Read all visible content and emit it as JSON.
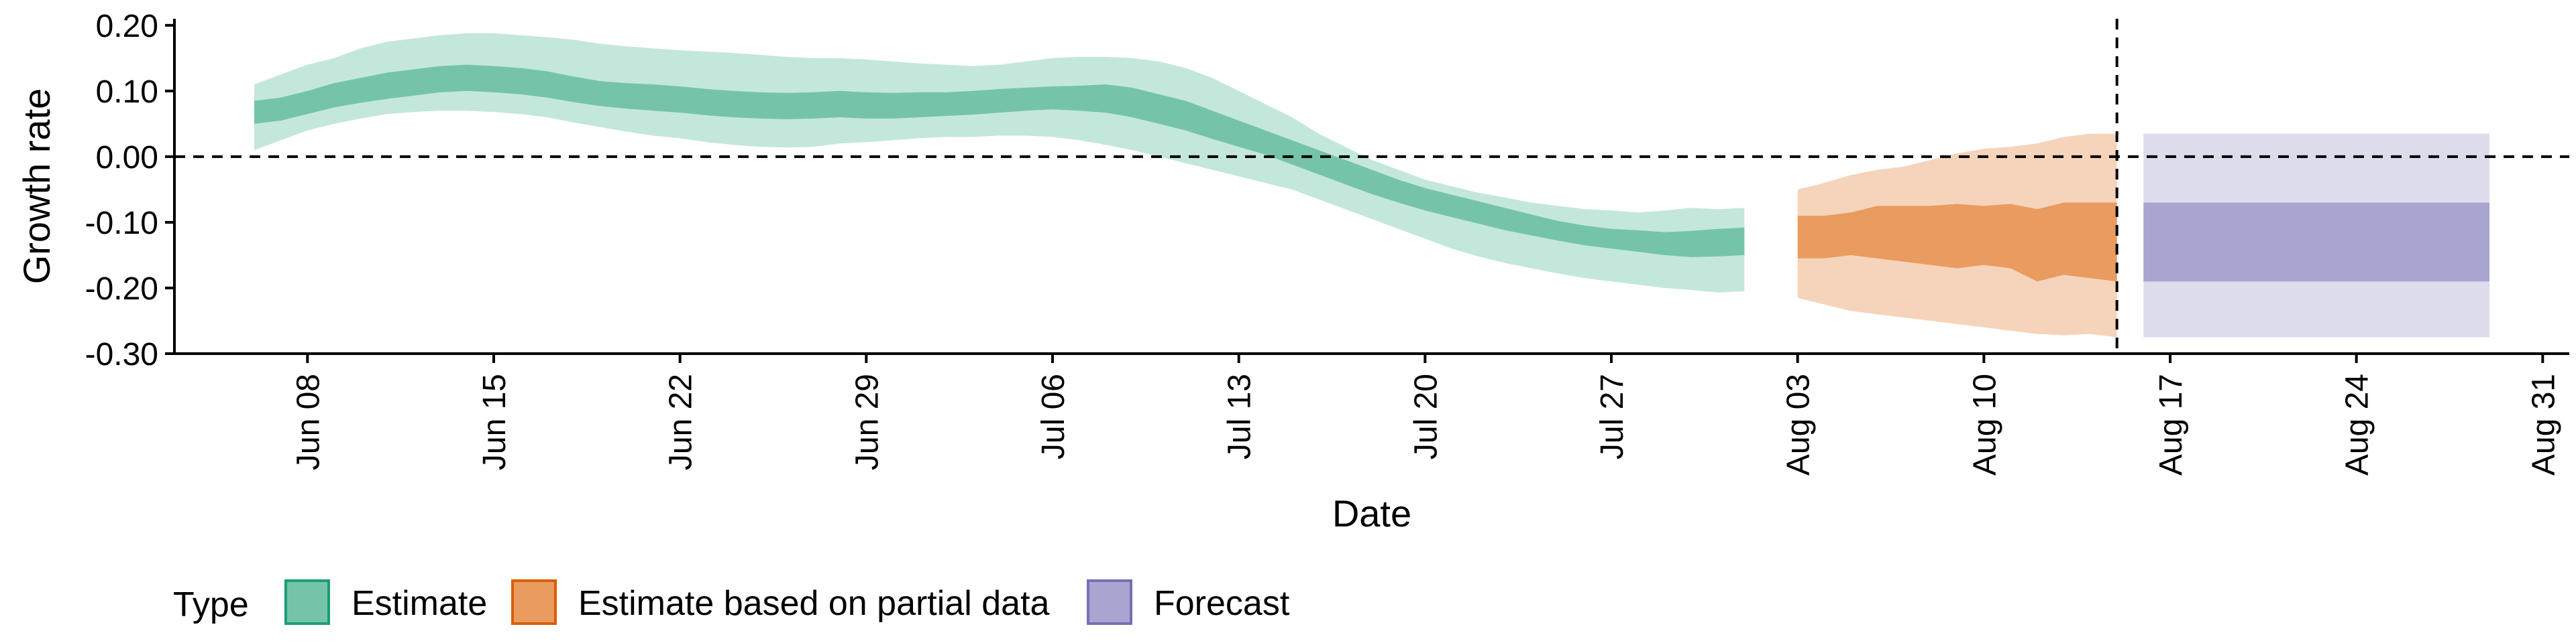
{
  "chart_data": {
    "type": "area",
    "xlabel": "Date",
    "ylabel": "Growth rate",
    "ylim": [
      -0.3,
      0.21
    ],
    "xlim": [
      "2020-06-03",
      "2020-09-01"
    ],
    "grid": false,
    "y_ticks": [
      {
        "value": 0.2,
        "label": "0.20"
      },
      {
        "value": 0.1,
        "label": "0.10"
      },
      {
        "value": 0.0,
        "label": "0.00"
      },
      {
        "value": -0.1,
        "label": "-0.10"
      },
      {
        "value": -0.2,
        "label": "-0.20"
      },
      {
        "value": -0.3,
        "label": "-0.30"
      }
    ],
    "x_ticks": [
      {
        "date": "2020-06-08",
        "label": "Jun 08"
      },
      {
        "date": "2020-06-15",
        "label": "Jun 15"
      },
      {
        "date": "2020-06-22",
        "label": "Jun 22"
      },
      {
        "date": "2020-06-29",
        "label": "Jun 29"
      },
      {
        "date": "2020-07-06",
        "label": "Jul 06"
      },
      {
        "date": "2020-07-13",
        "label": "Jul 13"
      },
      {
        "date": "2020-07-20",
        "label": "Jul 20"
      },
      {
        "date": "2020-07-27",
        "label": "Jul 27"
      },
      {
        "date": "2020-08-03",
        "label": "Aug 03"
      },
      {
        "date": "2020-08-10",
        "label": "Aug 10"
      },
      {
        "date": "2020-08-17",
        "label": "Aug 17"
      },
      {
        "date": "2020-08-24",
        "label": "Aug 24"
      },
      {
        "date": "2020-08-31",
        "label": "Aug 31"
      }
    ],
    "hline": 0.0,
    "vline": "2020-08-15",
    "legend": {
      "title": "Type",
      "position": "bottom-left"
    },
    "series": [
      {
        "name": "Estimate",
        "color_inner": "#75c4a9",
        "color_outer": "#c4e7dc",
        "border": "#1b9e77",
        "x": [
          "2020-06-06",
          "2020-06-07",
          "2020-06-08",
          "2020-06-09",
          "2020-06-10",
          "2020-06-11",
          "2020-06-12",
          "2020-06-13",
          "2020-06-14",
          "2020-06-15",
          "2020-06-16",
          "2020-06-17",
          "2020-06-18",
          "2020-06-19",
          "2020-06-20",
          "2020-06-21",
          "2020-06-22",
          "2020-06-23",
          "2020-06-24",
          "2020-06-25",
          "2020-06-26",
          "2020-06-27",
          "2020-06-28",
          "2020-06-29",
          "2020-06-30",
          "2020-07-01",
          "2020-07-02",
          "2020-07-03",
          "2020-07-04",
          "2020-07-05",
          "2020-07-06",
          "2020-07-07",
          "2020-07-08",
          "2020-07-09",
          "2020-07-10",
          "2020-07-11",
          "2020-07-12",
          "2020-07-13",
          "2020-07-14",
          "2020-07-15",
          "2020-07-16",
          "2020-07-17",
          "2020-07-18",
          "2020-07-19",
          "2020-07-20",
          "2020-07-21",
          "2020-07-22",
          "2020-07-23",
          "2020-07-24",
          "2020-07-25",
          "2020-07-26",
          "2020-07-27",
          "2020-07-28",
          "2020-07-29",
          "2020-07-30",
          "2020-07-31",
          "2020-08-01"
        ],
        "outer_upper": [
          0.11,
          0.125,
          0.14,
          0.15,
          0.165,
          0.175,
          0.18,
          0.185,
          0.188,
          0.188,
          0.185,
          0.182,
          0.178,
          0.172,
          0.168,
          0.165,
          0.162,
          0.16,
          0.158,
          0.155,
          0.152,
          0.15,
          0.15,
          0.148,
          0.145,
          0.142,
          0.14,
          0.138,
          0.14,
          0.145,
          0.15,
          0.152,
          0.152,
          0.15,
          0.145,
          0.135,
          0.12,
          0.1,
          0.08,
          0.06,
          0.035,
          0.015,
          -0.005,
          -0.02,
          -0.035,
          -0.045,
          -0.055,
          -0.062,
          -0.07,
          -0.075,
          -0.08,
          -0.082,
          -0.085,
          -0.082,
          -0.078,
          -0.08,
          -0.078
        ],
        "inner_upper": [
          0.085,
          0.09,
          0.1,
          0.112,
          0.12,
          0.128,
          0.133,
          0.138,
          0.14,
          0.138,
          0.135,
          0.13,
          0.122,
          0.115,
          0.112,
          0.11,
          0.107,
          0.103,
          0.1,
          0.098,
          0.097,
          0.098,
          0.1,
          0.098,
          0.097,
          0.098,
          0.098,
          0.1,
          0.103,
          0.105,
          0.107,
          0.108,
          0.11,
          0.105,
          0.095,
          0.085,
          0.07,
          0.055,
          0.04,
          0.025,
          0.01,
          -0.005,
          -0.02,
          -0.035,
          -0.048,
          -0.058,
          -0.068,
          -0.078,
          -0.088,
          -0.098,
          -0.105,
          -0.11,
          -0.112,
          -0.115,
          -0.113,
          -0.11,
          -0.108
        ],
        "inner_lower": [
          0.05,
          0.055,
          0.065,
          0.075,
          0.082,
          0.088,
          0.093,
          0.098,
          0.1,
          0.098,
          0.095,
          0.09,
          0.083,
          0.077,
          0.073,
          0.07,
          0.067,
          0.063,
          0.06,
          0.058,
          0.057,
          0.058,
          0.06,
          0.058,
          0.058,
          0.06,
          0.062,
          0.064,
          0.067,
          0.07,
          0.072,
          0.07,
          0.067,
          0.06,
          0.05,
          0.04,
          0.027,
          0.015,
          0.003,
          -0.012,
          -0.027,
          -0.042,
          -0.057,
          -0.07,
          -0.082,
          -0.092,
          -0.102,
          -0.112,
          -0.12,
          -0.128,
          -0.135,
          -0.14,
          -0.145,
          -0.15,
          -0.153,
          -0.152,
          -0.15
        ],
        "outer_lower": [
          0.01,
          0.025,
          0.04,
          0.05,
          0.058,
          0.065,
          0.068,
          0.07,
          0.07,
          0.068,
          0.065,
          0.06,
          0.052,
          0.045,
          0.038,
          0.032,
          0.028,
          0.022,
          0.018,
          0.015,
          0.014,
          0.015,
          0.02,
          0.022,
          0.025,
          0.028,
          0.03,
          0.03,
          0.032,
          0.032,
          0.03,
          0.025,
          0.018,
          0.01,
          0.0,
          -0.01,
          -0.02,
          -0.03,
          -0.04,
          -0.05,
          -0.065,
          -0.08,
          -0.095,
          -0.11,
          -0.125,
          -0.14,
          -0.152,
          -0.162,
          -0.17,
          -0.178,
          -0.185,
          -0.19,
          -0.195,
          -0.2,
          -0.203,
          -0.207,
          -0.205
        ]
      },
      {
        "name": "Estimate based on partial data",
        "color_inner": "#e99b60",
        "color_outer": "#f5d4bb",
        "border": "#d95f02",
        "x": [
          "2020-08-03",
          "2020-08-04",
          "2020-08-05",
          "2020-08-06",
          "2020-08-07",
          "2020-08-08",
          "2020-08-09",
          "2020-08-10",
          "2020-08-11",
          "2020-08-12",
          "2020-08-13",
          "2020-08-14",
          "2020-08-15"
        ],
        "outer_upper": [
          -0.05,
          -0.04,
          -0.028,
          -0.02,
          -0.015,
          -0.005,
          0.005,
          0.012,
          0.015,
          0.02,
          0.03,
          0.035,
          0.035
        ],
        "inner_upper": [
          -0.09,
          -0.09,
          -0.085,
          -0.075,
          -0.075,
          -0.075,
          -0.072,
          -0.075,
          -0.072,
          -0.08,
          -0.07,
          -0.07,
          -0.07
        ],
        "inner_lower": [
          -0.155,
          -0.155,
          -0.15,
          -0.155,
          -0.16,
          -0.165,
          -0.17,
          -0.165,
          -0.17,
          -0.19,
          -0.18,
          -0.185,
          -0.19
        ],
        "outer_lower": [
          -0.215,
          -0.225,
          -0.235,
          -0.24,
          -0.245,
          -0.25,
          -0.255,
          -0.26,
          -0.265,
          -0.27,
          -0.272,
          -0.27,
          -0.275
        ]
      },
      {
        "name": "Forecast",
        "color_inner": "#a8a5d1",
        "color_outer": "#dddcec",
        "border": "#7570b3",
        "x": [
          "2020-08-16",
          "2020-08-29"
        ],
        "outer_upper": [
          0.035,
          0.035
        ],
        "inner_upper": [
          -0.07,
          -0.07
        ],
        "inner_lower": [
          -0.19,
          -0.19
        ],
        "outer_lower": [
          -0.275,
          -0.275
        ]
      }
    ]
  }
}
